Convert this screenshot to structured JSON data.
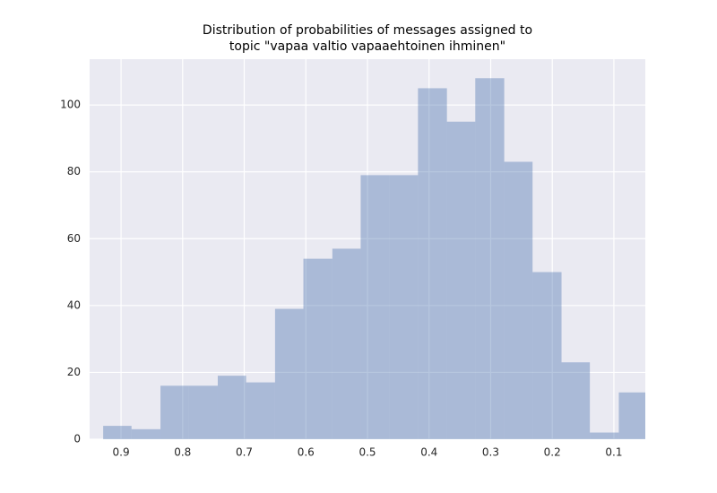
{
  "chart_data": {
    "type": "histogram",
    "title": [
      "Distribution of probabilities of messages assigned to",
      "topic \"vapaa valtio vapaaehtoinen ihminen\""
    ],
    "bins": [
      0.046,
      0.092,
      0.139,
      0.185,
      0.232,
      0.278,
      0.325,
      0.371,
      0.418,
      0.464,
      0.511,
      0.557,
      0.604,
      0.65,
      0.697,
      0.743,
      0.79,
      0.836,
      0.883,
      0.929
    ],
    "counts": [
      14,
      2,
      23,
      50,
      83,
      108,
      95,
      105,
      79,
      79,
      57,
      54,
      39,
      17,
      19,
      16,
      16,
      3,
      4
    ],
    "color": "#4c72b0",
    "opacity": 0.4,
    "xlim": [
      0.951,
      0.049
    ],
    "xticks": [
      0.9,
      0.8,
      0.7,
      0.6,
      0.5,
      0.4,
      0.3,
      0.2,
      0.1
    ],
    "ylim": [
      0,
      113.7
    ],
    "yticks": [
      0,
      20,
      40,
      60,
      80,
      100
    ],
    "grid": true
  }
}
